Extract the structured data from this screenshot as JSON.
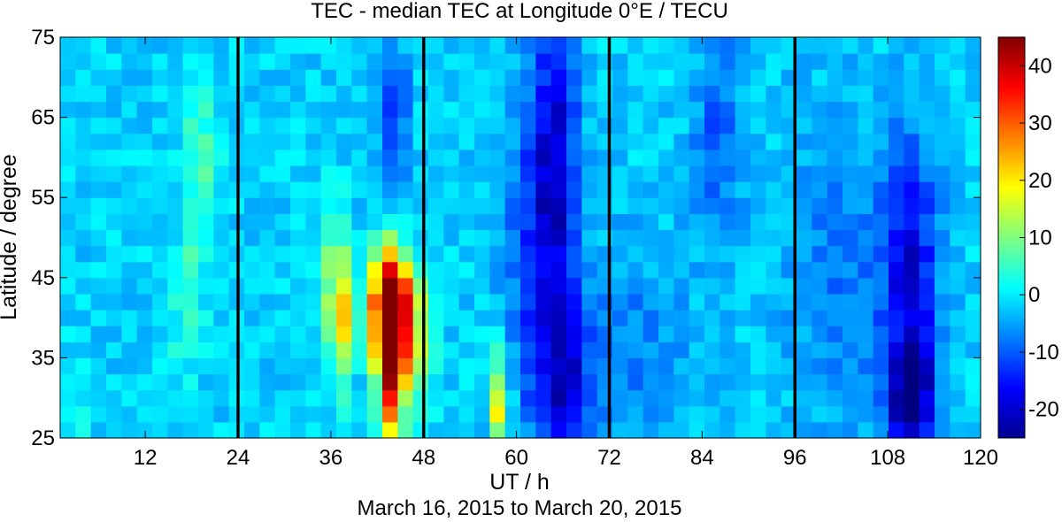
{
  "chart_data": {
    "type": "heatmap",
    "title": "TEC - median TEC at Longitude 0°E / TECU",
    "xlabel": "UT / h",
    "ylabel": "Latitude / degree",
    "subtitle": "March 16, 2015 to March 20, 2015",
    "xlim": [
      1,
      120
    ],
    "ylim": [
      25,
      75
    ],
    "x_ticks": [
      12,
      24,
      36,
      48,
      60,
      72,
      84,
      96,
      108,
      120
    ],
    "y_ticks": [
      25,
      35,
      45,
      55,
      65,
      75
    ],
    "vertical_lines_at": [
      24,
      48,
      72,
      96
    ],
    "colorbar": {
      "colormap": "jet",
      "range": [
        -25,
        45
      ],
      "ticks": [
        -20,
        -10,
        0,
        10,
        20,
        30,
        40
      ]
    },
    "grid": false,
    "features": [
      {
        "kind": "positive",
        "ut_center": 44,
        "lat_center": 34,
        "ut_width": 1.6,
        "lat_width": 9,
        "value": 46
      },
      {
        "kind": "positive",
        "ut_center": 44,
        "lat_center": 43,
        "ut_width": 1.6,
        "lat_width": 6,
        "value": 38
      },
      {
        "kind": "positive",
        "ut_center": 42,
        "lat_center": 41,
        "ut_width": 1.3,
        "lat_width": 8,
        "value": 24
      },
      {
        "kind": "positive",
        "ut_center": 46,
        "lat_center": 40,
        "ut_width": 1.3,
        "lat_width": 7,
        "value": 22
      },
      {
        "kind": "positive",
        "ut_center": 37.5,
        "lat_center": 40,
        "ut_width": 1.5,
        "lat_width": 8,
        "value": 22
      },
      {
        "kind": "positive",
        "ut_center": 48,
        "lat_center": 37,
        "ut_width": 1.4,
        "lat_width": 9,
        "value": 14
      },
      {
        "kind": "positive",
        "ut_center": 36,
        "lat_center": 47,
        "ut_width": 1.8,
        "lat_width": 9,
        "value": 9
      },
      {
        "kind": "positive",
        "ut_center": 58,
        "lat_center": 28,
        "ut_width": 1.2,
        "lat_width": 4,
        "value": 22
      },
      {
        "kind": "positive",
        "ut_center": 57,
        "lat_center": 34,
        "ut_width": 1.6,
        "lat_width": 5,
        "value": 8
      },
      {
        "kind": "positive",
        "ut_center": 19,
        "lat_center": 58,
        "ut_width": 2.5,
        "lat_width": 14,
        "value": 8
      },
      {
        "kind": "positive",
        "ut_center": 17,
        "lat_center": 40,
        "ut_width": 2.0,
        "lat_width": 10,
        "value": 5
      },
      {
        "kind": "positive",
        "ut_center": 2,
        "lat_center": 29,
        "ut_width": 3.0,
        "lat_width": 6,
        "value": 5
      },
      {
        "kind": "negative",
        "ut_center": 44,
        "lat_center": 64,
        "ut_width": 2.0,
        "lat_width": 9,
        "value": -12
      },
      {
        "kind": "negative",
        "ut_center": 65,
        "lat_center": 60,
        "ut_width": 3.0,
        "lat_width": 18,
        "value": -16
      },
      {
        "kind": "negative",
        "ut_center": 66,
        "lat_center": 33,
        "ut_width": 3.0,
        "lat_width": 11,
        "value": -14
      },
      {
        "kind": "negative",
        "ut_center": 62,
        "lat_center": 45,
        "ut_width": 4.0,
        "lat_width": 25,
        "value": -8
      },
      {
        "kind": "negative",
        "ut_center": 86,
        "lat_center": 62,
        "ut_width": 3.0,
        "lat_width": 15,
        "value": -8
      },
      {
        "kind": "negative",
        "ut_center": 74,
        "lat_center": 35,
        "ut_width": 8.0,
        "lat_width": 14,
        "value": -6
      },
      {
        "kind": "negative",
        "ut_center": 111,
        "lat_center": 30,
        "ut_width": 2.5,
        "lat_width": 6,
        "value": -24
      },
      {
        "kind": "negative",
        "ut_center": 111,
        "lat_center": 45,
        "ut_width": 3.5,
        "lat_width": 17,
        "value": -16
      },
      {
        "kind": "negative",
        "ut_center": 102,
        "lat_center": 45,
        "ut_width": 7.0,
        "lat_width": 20,
        "value": -6
      }
    ],
    "baseline_value": -2
  }
}
